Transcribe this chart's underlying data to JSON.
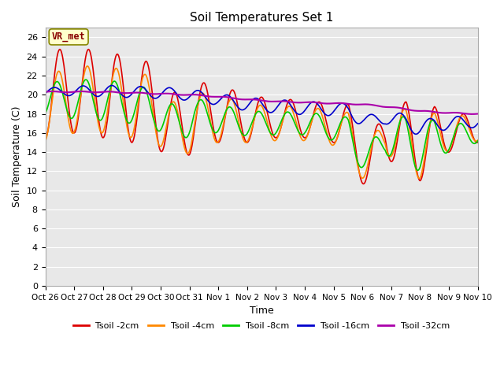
{
  "title": "Soil Temperatures Set 1",
  "xlabel": "Time",
  "ylabel": "Soil Temperature (C)",
  "ylim": [
    0,
    27
  ],
  "yticks": [
    0,
    2,
    4,
    6,
    8,
    10,
    12,
    14,
    16,
    18,
    20,
    22,
    24,
    26
  ],
  "xtick_labels": [
    "Oct 26",
    "Oct 27",
    "Oct 28",
    "Oct 29",
    "Oct 30",
    "Oct 31",
    "Nov 1",
    "Nov 2",
    "Nov 3",
    "Nov 4",
    "Nov 5",
    "Nov 6",
    "Nov 7",
    "Nov 8",
    "Nov 9",
    "Nov 10"
  ],
  "fig_bg_color": "#ffffff",
  "plot_bg": "#e8e8e8",
  "grid_color": "#ffffff",
  "annotation_text": "VR_met",
  "annotation_color": "#880000",
  "annotation_bg": "#ffffcc",
  "annotation_border": "#888800",
  "series": {
    "Tsoil -2cm": {
      "color": "#dd0000",
      "lw": 1.2
    },
    "Tsoil -4cm": {
      "color": "#ff8800",
      "lw": 1.2
    },
    "Tsoil -8cm": {
      "color": "#00cc00",
      "lw": 1.2
    },
    "Tsoil -16cm": {
      "color": "#0000cc",
      "lw": 1.2
    },
    "Tsoil -32cm": {
      "color": "#aa00aa",
      "lw": 1.5
    }
  }
}
